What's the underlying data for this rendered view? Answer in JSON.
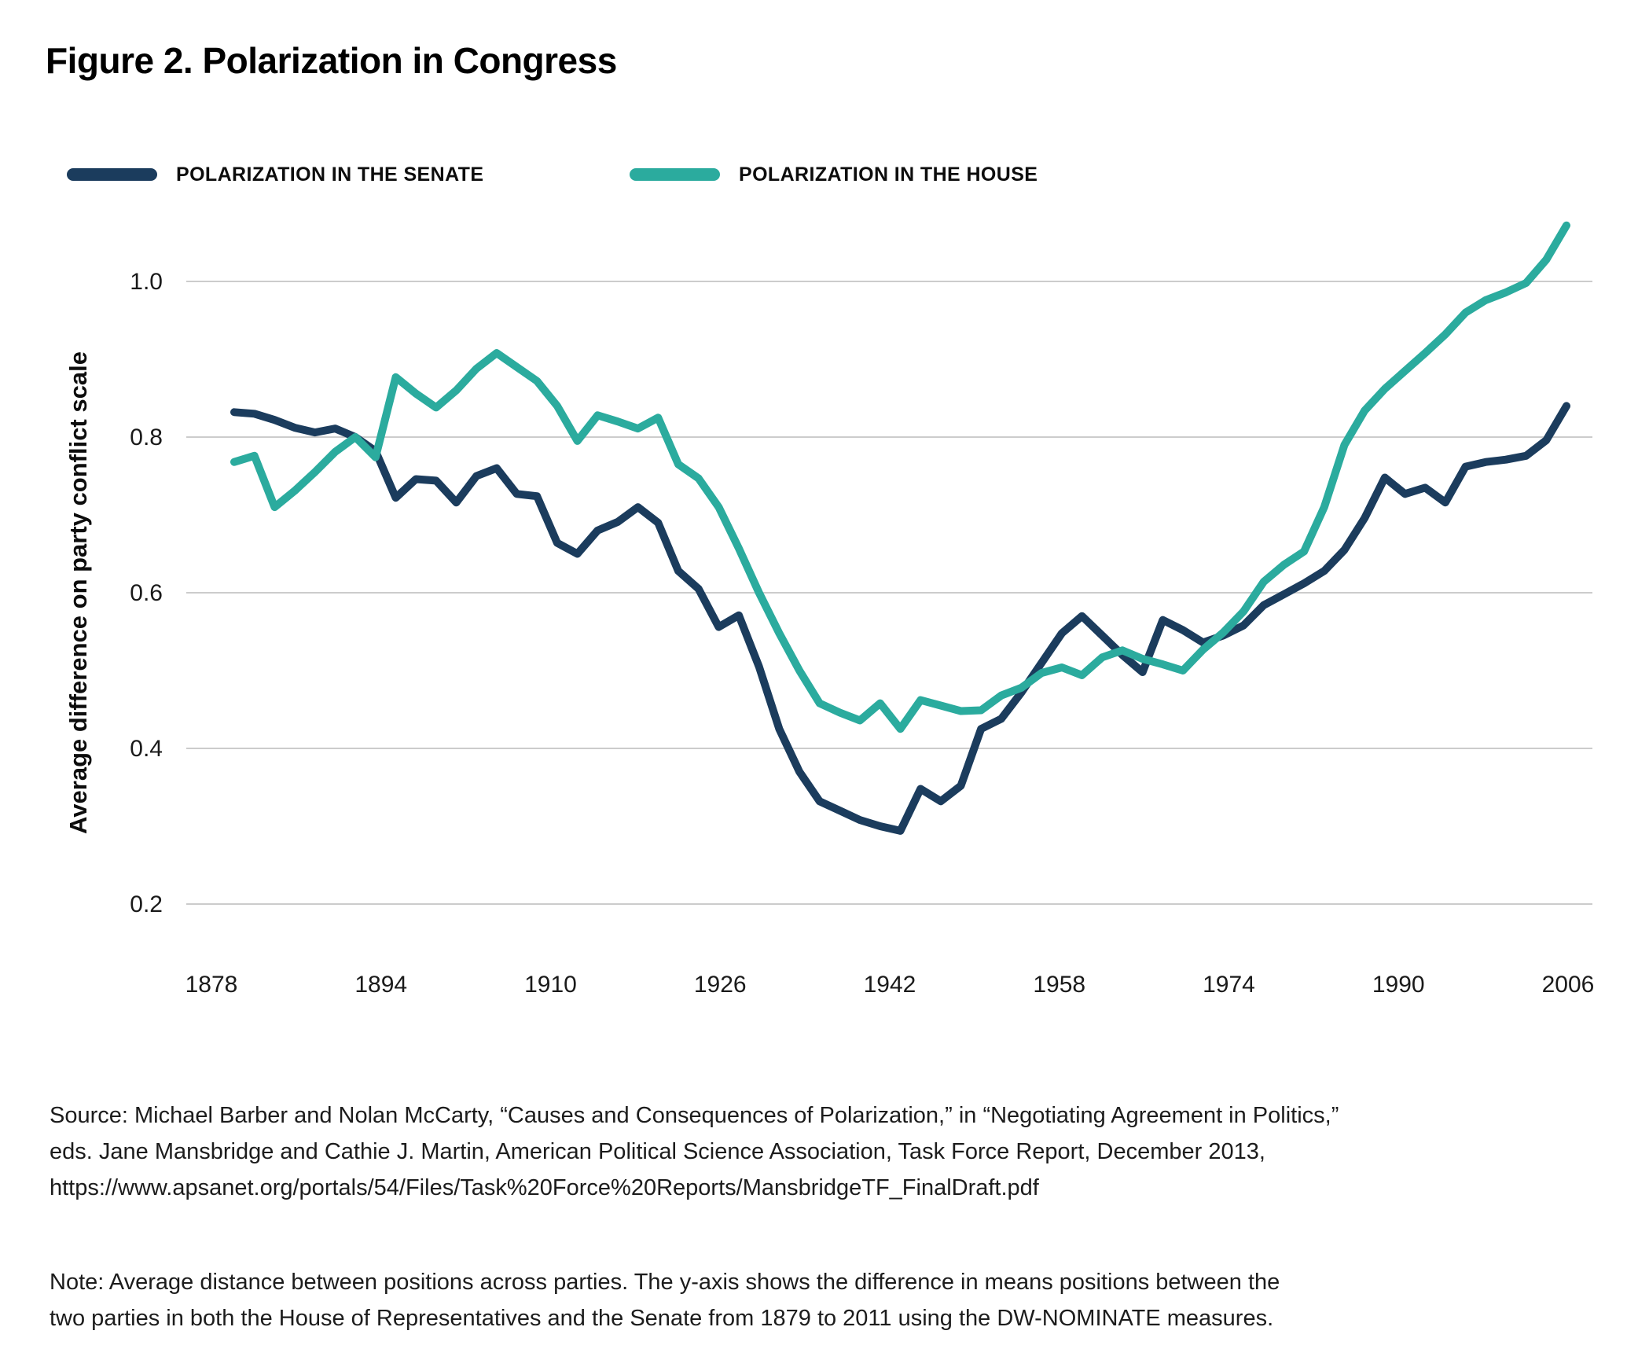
{
  "figure": {
    "title": "Figure 2. Polarization in Congress"
  },
  "legend": [
    {
      "label": "POLARIZATION IN THE SENATE",
      "color": "#1b3c5d"
    },
    {
      "label": "POLARIZATION IN THE HOUSE",
      "color": "#2bab9e"
    }
  ],
  "chart_data": {
    "type": "line",
    "title": "Figure 2. Polarization in Congress",
    "xlabel": "",
    "ylabel": "Average difference on party conflict scale",
    "ylim": [
      0.2,
      1.0
    ],
    "xlim": [
      1879,
      2011
    ],
    "grid": "horizontal",
    "legend_position": "top",
    "gridline_color": "#cccccc",
    "y_ticks": [
      {
        "label": "1.0",
        "value": 1.0
      },
      {
        "label": "0.8",
        "value": 0.8
      },
      {
        "label": "0.6",
        "value": 0.6
      },
      {
        "label": "0.4",
        "value": 0.4
      },
      {
        "label": "0.2",
        "value": 0.2
      }
    ],
    "x_ticks": [
      "1878",
      "1894",
      "1910",
      "1926",
      "1942",
      "1958",
      "1974",
      "1990",
      "2006"
    ],
    "series": [
      {
        "name": "POLARIZATION IN THE SENATE",
        "color": "#1b3c5d",
        "points": [
          [
            1879,
            0.832
          ],
          [
            1881,
            0.83
          ],
          [
            1883,
            0.822
          ],
          [
            1885,
            0.812
          ],
          [
            1887,
            0.806
          ],
          [
            1889,
            0.811
          ],
          [
            1891,
            0.8
          ],
          [
            1893,
            0.782
          ],
          [
            1895,
            0.722
          ],
          [
            1897,
            0.746
          ],
          [
            1899,
            0.744
          ],
          [
            1901,
            0.716
          ],
          [
            1903,
            0.75
          ],
          [
            1905,
            0.76
          ],
          [
            1907,
            0.727
          ],
          [
            1909,
            0.724
          ],
          [
            1911,
            0.664
          ],
          [
            1913,
            0.65
          ],
          [
            1915,
            0.68
          ],
          [
            1917,
            0.691
          ],
          [
            1919,
            0.71
          ],
          [
            1921,
            0.69
          ],
          [
            1923,
            0.628
          ],
          [
            1925,
            0.605
          ],
          [
            1927,
            0.556
          ],
          [
            1929,
            0.571
          ],
          [
            1931,
            0.505
          ],
          [
            1933,
            0.425
          ],
          [
            1935,
            0.37
          ],
          [
            1937,
            0.332
          ],
          [
            1939,
            0.32
          ],
          [
            1941,
            0.308
          ],
          [
            1943,
            0.3
          ],
          [
            1945,
            0.294
          ],
          [
            1947,
            0.348
          ],
          [
            1949,
            0.332
          ],
          [
            1951,
            0.352
          ],
          [
            1953,
            0.425
          ],
          [
            1955,
            0.438
          ],
          [
            1957,
            0.472
          ],
          [
            1959,
            0.51
          ],
          [
            1961,
            0.548
          ],
          [
            1963,
            0.57
          ],
          [
            1965,
            0.545
          ],
          [
            1967,
            0.52
          ],
          [
            1969,
            0.498
          ],
          [
            1971,
            0.565
          ],
          [
            1973,
            0.552
          ],
          [
            1975,
            0.536
          ],
          [
            1977,
            0.545
          ],
          [
            1979,
            0.558
          ],
          [
            1981,
            0.584
          ],
          [
            1983,
            0.598
          ],
          [
            1985,
            0.612
          ],
          [
            1987,
            0.628
          ],
          [
            1989,
            0.655
          ],
          [
            1991,
            0.696
          ],
          [
            1993,
            0.748
          ],
          [
            1995,
            0.727
          ],
          [
            1997,
            0.735
          ],
          [
            1999,
            0.716
          ],
          [
            2001,
            0.762
          ],
          [
            2003,
            0.768
          ],
          [
            2005,
            0.771
          ],
          [
            2007,
            0.776
          ],
          [
            2009,
            0.796
          ],
          [
            2011,
            0.84
          ]
        ]
      },
      {
        "name": "POLARIZATION IN THE HOUSE",
        "color": "#2bab9e",
        "points": [
          [
            1879,
            0.768
          ],
          [
            1881,
            0.776
          ],
          [
            1883,
            0.71
          ],
          [
            1885,
            0.731
          ],
          [
            1887,
            0.755
          ],
          [
            1889,
            0.781
          ],
          [
            1891,
            0.8
          ],
          [
            1893,
            0.774
          ],
          [
            1895,
            0.877
          ],
          [
            1897,
            0.856
          ],
          [
            1899,
            0.838
          ],
          [
            1901,
            0.86
          ],
          [
            1903,
            0.888
          ],
          [
            1905,
            0.908
          ],
          [
            1907,
            0.89
          ],
          [
            1909,
            0.872
          ],
          [
            1911,
            0.84
          ],
          [
            1913,
            0.795
          ],
          [
            1915,
            0.828
          ],
          [
            1917,
            0.82
          ],
          [
            1919,
            0.811
          ],
          [
            1921,
            0.825
          ],
          [
            1923,
            0.765
          ],
          [
            1925,
            0.747
          ],
          [
            1927,
            0.71
          ],
          [
            1929,
            0.657
          ],
          [
            1931,
            0.6
          ],
          [
            1933,
            0.548
          ],
          [
            1935,
            0.5
          ],
          [
            1937,
            0.458
          ],
          [
            1939,
            0.446
          ],
          [
            1941,
            0.436
          ],
          [
            1943,
            0.458
          ],
          [
            1945,
            0.425
          ],
          [
            1947,
            0.462
          ],
          [
            1949,
            0.455
          ],
          [
            1951,
            0.448
          ],
          [
            1953,
            0.449
          ],
          [
            1955,
            0.468
          ],
          [
            1957,
            0.478
          ],
          [
            1959,
            0.497
          ],
          [
            1961,
            0.504
          ],
          [
            1963,
            0.494
          ],
          [
            1965,
            0.517
          ],
          [
            1967,
            0.526
          ],
          [
            1969,
            0.515
          ],
          [
            1971,
            0.508
          ],
          [
            1973,
            0.5
          ],
          [
            1975,
            0.527
          ],
          [
            1977,
            0.549
          ],
          [
            1979,
            0.576
          ],
          [
            1981,
            0.614
          ],
          [
            1983,
            0.636
          ],
          [
            1985,
            0.653
          ],
          [
            1987,
            0.71
          ],
          [
            1989,
            0.79
          ],
          [
            1991,
            0.834
          ],
          [
            1993,
            0.862
          ],
          [
            1995,
            0.885
          ],
          [
            1997,
            0.908
          ],
          [
            1999,
            0.932
          ],
          [
            2001,
            0.96
          ],
          [
            2003,
            0.976
          ],
          [
            2005,
            0.986
          ],
          [
            2007,
            0.998
          ],
          [
            2009,
            1.028
          ],
          [
            2011,
            1.072
          ]
        ]
      }
    ]
  },
  "source": {
    "lines": [
      "Source: Michael Barber and Nolan McCarty, “Causes and Consequences of Polarization,” in “Negotiating Agreement in Politics,”",
      "eds. Jane Mansbridge and Cathie J. Martin, American Political Science Association, Task Force Report, December 2013,",
      "https://www.apsanet.org/portals/54/Files/Task%20Force%20Reports/MansbridgeTF_FinalDraft.pdf"
    ]
  },
  "note": {
    "lines": [
      "Note: Average distance between positions across parties. The y-axis shows the difference in means positions between the",
      "two parties in both the House of Representatives and the Senate from 1879 to 2011 using the DW-NOMINATE measures."
    ]
  }
}
